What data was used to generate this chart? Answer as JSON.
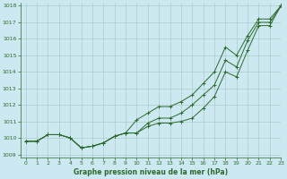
{
  "xlabel": "Graphe pression niveau de la mer (hPa)",
  "bg_color": "#cce8f0",
  "grid_color": "#aacccc",
  "line_color": "#2d6a2d",
  "xlim": [
    -0.5,
    23
  ],
  "ylim": [
    1008.8,
    1018.2
  ],
  "yticks": [
    1009,
    1010,
    1011,
    1012,
    1013,
    1014,
    1015,
    1016,
    1017,
    1018
  ],
  "xticks": [
    0,
    1,
    2,
    3,
    4,
    5,
    6,
    7,
    8,
    9,
    10,
    11,
    12,
    13,
    14,
    15,
    16,
    17,
    18,
    19,
    20,
    21,
    22,
    23
  ],
  "series": [
    [
      1009.8,
      1009.8,
      1010.2,
      1010.2,
      1010.0,
      1009.4,
      1009.5,
      1009.7,
      1010.1,
      1010.3,
      1011.1,
      1011.5,
      1011.9,
      1011.9,
      1012.2,
      1012.6,
      1013.3,
      1014.0,
      1015.5,
      1015.0,
      1016.2,
      1017.2,
      1017.2,
      1018.0
    ],
    [
      1009.8,
      1009.8,
      1010.2,
      1010.2,
      1010.0,
      1009.4,
      1009.5,
      1009.7,
      1010.1,
      1010.3,
      1010.3,
      1010.9,
      1011.2,
      1011.2,
      1011.5,
      1012.0,
      1012.6,
      1013.2,
      1014.7,
      1014.3,
      1015.9,
      1017.0,
      1017.0,
      1018.0
    ],
    [
      1009.8,
      1009.8,
      1010.2,
      1010.2,
      1010.0,
      1009.4,
      1009.5,
      1009.7,
      1010.1,
      1010.3,
      1010.3,
      1010.7,
      1010.9,
      1010.9,
      1011.0,
      1011.2,
      1011.8,
      1012.5,
      1014.0,
      1013.7,
      1015.3,
      1016.8,
      1016.8,
      1018.0
    ]
  ]
}
